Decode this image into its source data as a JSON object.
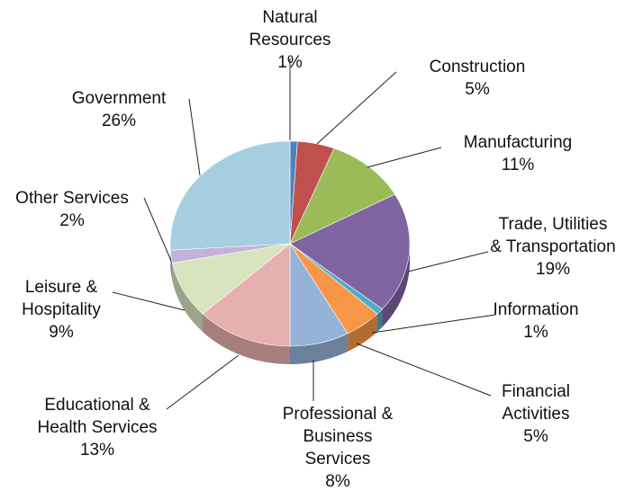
{
  "chart_data": {
    "type": "pie",
    "slices": [
      {
        "name": "Natural Resources",
        "label_lines": [
          "Natural",
          "Resources"
        ],
        "value": 1,
        "value_label": "1%",
        "color": "#4f81bd"
      },
      {
        "name": "Construction",
        "label_lines": [
          "Construction"
        ],
        "value": 5,
        "value_label": "5%",
        "color": "#c0504d"
      },
      {
        "name": "Manufacturing",
        "label_lines": [
          "Manufacturing"
        ],
        "value": 11,
        "value_label": "11%",
        "color": "#9bbb59"
      },
      {
        "name": "Trade, Utilities & Transportation",
        "label_lines": [
          "Trade, Utilities",
          "& Transportation"
        ],
        "value": 19,
        "value_label": "19%",
        "color": "#8064a2"
      },
      {
        "name": "Information",
        "label_lines": [
          "Information"
        ],
        "value": 1,
        "value_label": "1%",
        "color": "#4bacc6"
      },
      {
        "name": "Financial Activities",
        "label_lines": [
          "Financial",
          "Activities"
        ],
        "value": 5,
        "value_label": "5%",
        "color": "#f79646"
      },
      {
        "name": "Professional & Business Services",
        "label_lines": [
          "Professional &",
          "Business",
          "Services"
        ],
        "value": 8,
        "value_label": "8%",
        "color": "#95b3d7"
      },
      {
        "name": "Educational & Health Services",
        "label_lines": [
          "Educational &",
          "Health Services"
        ],
        "value": 13,
        "value_label": "13%",
        "color": "#e6b0ae"
      },
      {
        "name": "Leisure & Hospitality",
        "label_lines": [
          "Leisure &",
          "Hospitality"
        ],
        "value": 9,
        "value_label": "9%",
        "color": "#d7e4bd"
      },
      {
        "name": "Other Services",
        "label_lines": [
          "Other Services"
        ],
        "value": 2,
        "value_label": "2%",
        "color": "#c4b2d8"
      },
      {
        "name": "Government",
        "label_lines": [
          "Government"
        ],
        "value": 26,
        "value_label": "26%",
        "color": "#a5cfe0"
      }
    ],
    "start_angle_deg": 90,
    "direction": "clockwise",
    "three_d": true
  }
}
